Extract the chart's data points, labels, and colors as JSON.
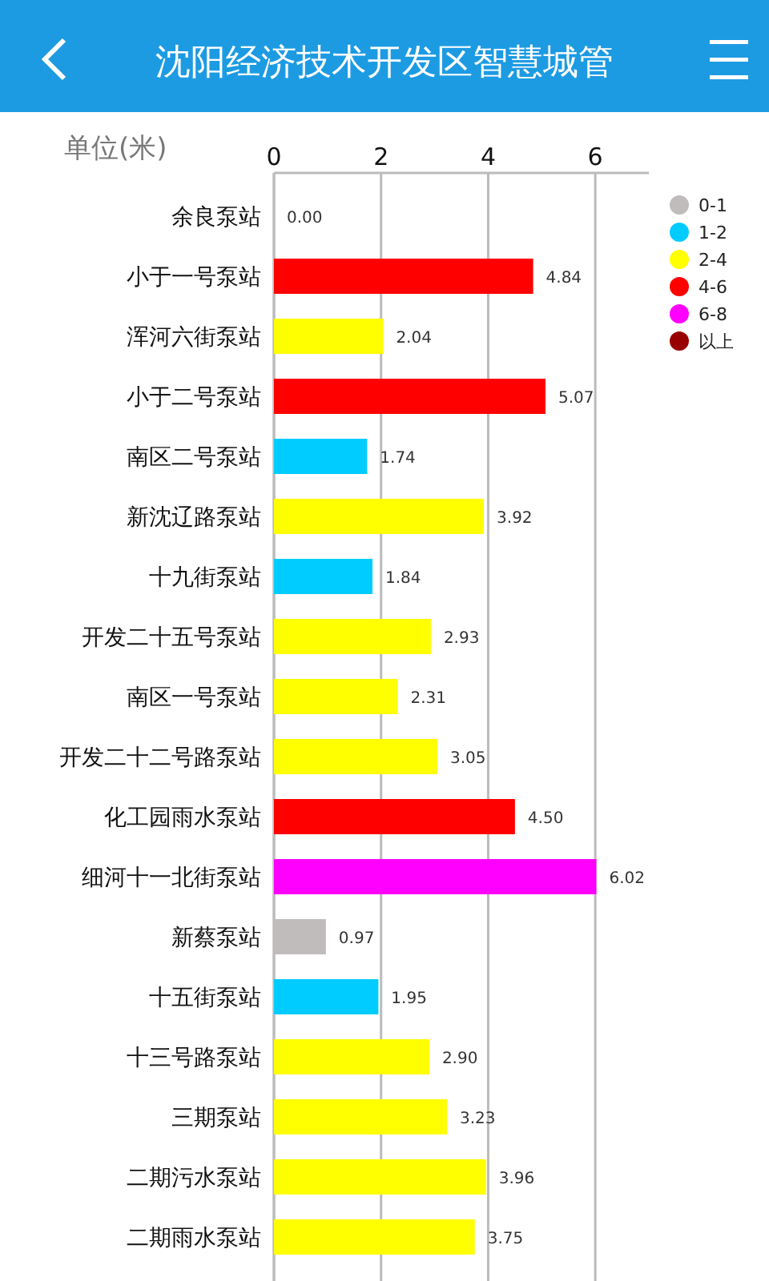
{
  "chart_data": {
    "type": "bar",
    "orientation": "horizontal",
    "stacked": true,
    "title": "沈阳经济技术开发区智慧城管",
    "xlabel": "单位(米)",
    "categories": [
      "余良泵站",
      "小于一号泵站",
      "浑河六街泵站",
      "小于二号泵站",
      "南区二号泵站",
      "新沈辽路泵站",
      "十九街泵站",
      "开发二十五号泵站",
      "南区一号泵站",
      "开发二十二号路泵站",
      "化工园雨水泵站",
      "细河十一北街泵站",
      "新蔡泵站",
      "十五街泵站",
      "十三号路泵站",
      "三期泵站",
      "二期污水泵站",
      "二期雨水泵站"
    ],
    "series": [
      {
        "name": "0-1",
        "color": "#c0bcbc",
        "values": [
          0,
          null,
          null,
          null,
          null,
          null,
          null,
          null,
          null,
          null,
          null,
          null,
          0.97,
          null,
          null,
          null,
          null,
          null
        ],
        "value_labels": [
          "0.00",
          null,
          null,
          null,
          null,
          null,
          null,
          null,
          null,
          null,
          null,
          null,
          "0.97",
          null,
          null,
          null,
          null,
          null
        ]
      },
      {
        "name": "1-2",
        "color": "#00ccff",
        "values": [
          null,
          null,
          null,
          null,
          1.74,
          null,
          1.84,
          null,
          null,
          null,
          null,
          null,
          null,
          1.95,
          null,
          null,
          null,
          null
        ],
        "value_labels": [
          null,
          null,
          null,
          null,
          "1.74",
          null,
          "1.84",
          null,
          null,
          null,
          null,
          null,
          null,
          "1.95",
          null,
          null,
          null,
          null
        ]
      },
      {
        "name": "2-4",
        "color": "#ffff00",
        "values": [
          null,
          null,
          2.04,
          null,
          null,
          3.92,
          null,
          2.93,
          2.31,
          3.05,
          null,
          null,
          null,
          null,
          2.9,
          3.23,
          3.96,
          3.75
        ],
        "value_labels": [
          null,
          null,
          "2.04",
          null,
          null,
          "3.92",
          null,
          "2.93",
          "2.31",
          "3.05",
          null,
          null,
          null,
          null,
          "2.90",
          "3.23",
          "3.96",
          "3.75"
        ]
      },
      {
        "name": "4-6",
        "color": "#ff0000",
        "values": [
          null,
          4.84,
          null,
          5.07,
          null,
          null,
          null,
          null,
          null,
          null,
          4.5,
          null,
          null,
          null,
          null,
          null,
          null,
          null
        ],
        "value_labels": [
          null,
          "4.84",
          null,
          "5.07",
          null,
          null,
          null,
          null,
          null,
          null,
          "4.50",
          null,
          null,
          null,
          null,
          null,
          null,
          null
        ]
      },
      {
        "name": "6-8",
        "color": "#ff00ff",
        "values": [
          null,
          null,
          null,
          null,
          null,
          null,
          null,
          null,
          null,
          null,
          null,
          6.02,
          null,
          null,
          null,
          null,
          null,
          null
        ],
        "value_labels": [
          null,
          null,
          null,
          null,
          null,
          null,
          null,
          null,
          null,
          null,
          null,
          "6.02",
          null,
          null,
          null,
          null,
          null,
          null
        ]
      },
      {
        "name": "以上",
        "color": "#990000",
        "values": [
          null,
          null,
          null,
          null,
          null,
          null,
          null,
          null,
          null,
          null,
          null,
          null,
          null,
          null,
          null,
          null,
          null,
          null
        ]
      }
    ],
    "xlim": [
      0,
      7
    ],
    "xticks": [
      0,
      2,
      4,
      6
    ],
    "grid": "x",
    "legend": "right"
  }
}
